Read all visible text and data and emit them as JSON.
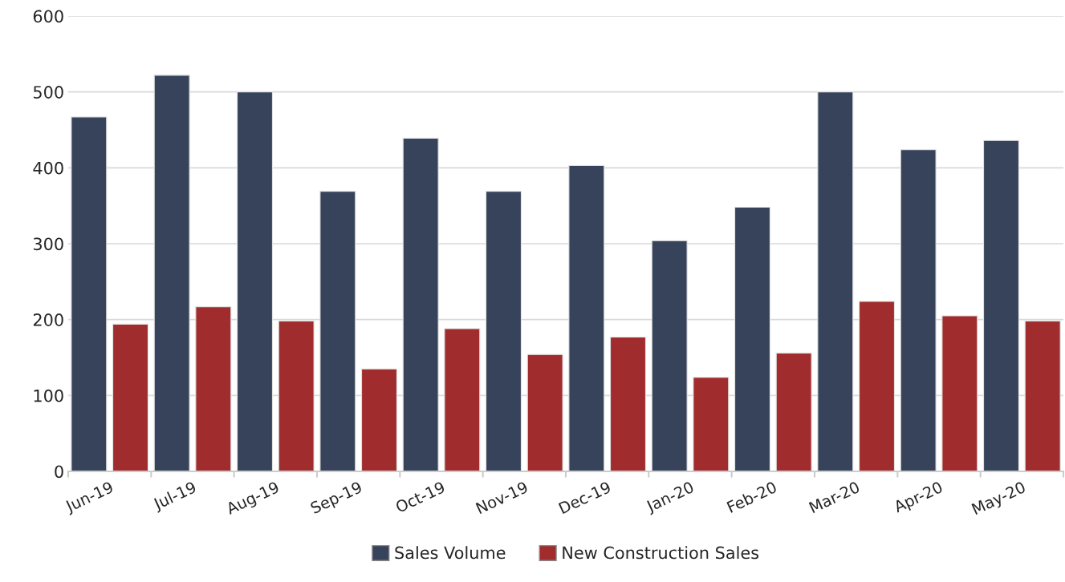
{
  "chart_data": {
    "type": "bar",
    "categories": [
      "Jun-19",
      "Jul-19",
      "Aug-19",
      "Sep-19",
      "Oct-19",
      "Nov-19",
      "Dec-19",
      "Jan-20",
      "Feb-20",
      "Mar-20",
      "Apr-20",
      "May-20"
    ],
    "series": [
      {
        "name": "Sales Volume",
        "color": "#37435a",
        "values": [
          467,
          522,
          500,
          369,
          439,
          369,
          403,
          304,
          348,
          500,
          424,
          436
        ]
      },
      {
        "name": "New Construction Sales",
        "color": "#a02c2d",
        "values": [
          194,
          217,
          198,
          135,
          188,
          154,
          177,
          124,
          156,
          224,
          205,
          198
        ]
      }
    ],
    "ylim": [
      0,
      600
    ],
    "yticks": [
      0,
      100,
      200,
      300,
      400,
      500,
      600
    ],
    "grid": "y",
    "legend": "bottom"
  }
}
